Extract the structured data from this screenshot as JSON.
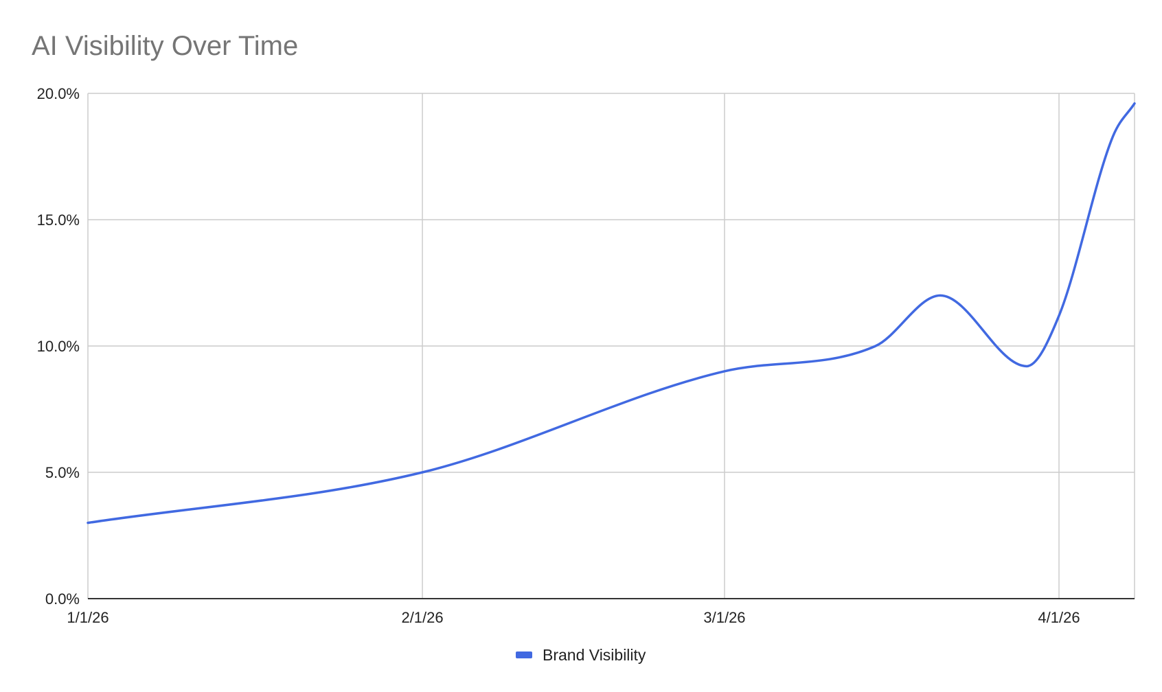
{
  "chart_data": {
    "type": "line",
    "title": "AI Visibility Over Time",
    "xlabel": "",
    "ylabel": "",
    "x_ticks": [
      {
        "label": "1/1/26",
        "date": "2026-01-01"
      },
      {
        "label": "2/1/26",
        "date": "2026-02-01"
      },
      {
        "label": "3/1/26",
        "date": "2026-03-01"
      },
      {
        "label": "4/1/26",
        "date": "2026-04-01"
      }
    ],
    "y_ticks": [
      "0.0%",
      "5.0%",
      "10.0%",
      "15.0%",
      "20.0%"
    ],
    "xlim": [
      "2026-01-01",
      "2026-04-08"
    ],
    "ylim": [
      0,
      20
    ],
    "grid": true,
    "legend_position": "bottom",
    "series": [
      {
        "name": "Brand Visibility",
        "color": "#4169e1",
        "points": [
          {
            "x": "2026-01-01",
            "y": 3.0
          },
          {
            "x": "2026-02-01",
            "y": 5.0
          },
          {
            "x": "2026-03-01",
            "y": 9.0
          },
          {
            "x": "2026-03-15",
            "y": 10.0
          },
          {
            "x": "2026-03-21",
            "y": 12.0
          },
          {
            "x": "2026-03-29",
            "y": 9.2
          },
          {
            "x": "2026-04-01",
            "y": 11.2
          },
          {
            "x": "2026-04-06",
            "y": 18.3
          },
          {
            "x": "2026-04-08",
            "y": 19.6
          }
        ]
      }
    ]
  }
}
